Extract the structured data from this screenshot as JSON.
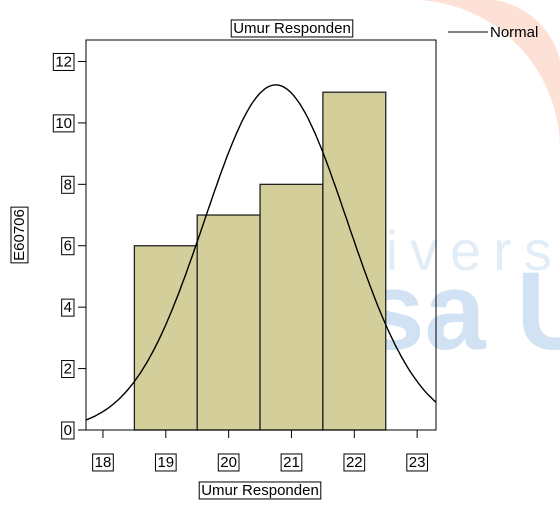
{
  "chart_data": {
    "type": "histogram",
    "title": "Umur Responden",
    "x_label": "Umur Responden",
    "y_label": "E60706",
    "bins": [
      18.5,
      19.5,
      20.5,
      21.5,
      22.5
    ],
    "counts": [
      6,
      7,
      8,
      11
    ],
    "color": "#d4cf9a",
    "curve": {
      "name": "Normal",
      "color": "#000000"
    },
    "xlim": [
      17.73,
      23.3
    ],
    "xticks": [
      18,
      19,
      20,
      21,
      22,
      23
    ],
    "ylim": [
      0,
      12.7
    ],
    "yticks": [
      0,
      2,
      4,
      6,
      8,
      10,
      12
    ],
    "watermark": [
      "Universita",
      "Esa U"
    ]
  }
}
